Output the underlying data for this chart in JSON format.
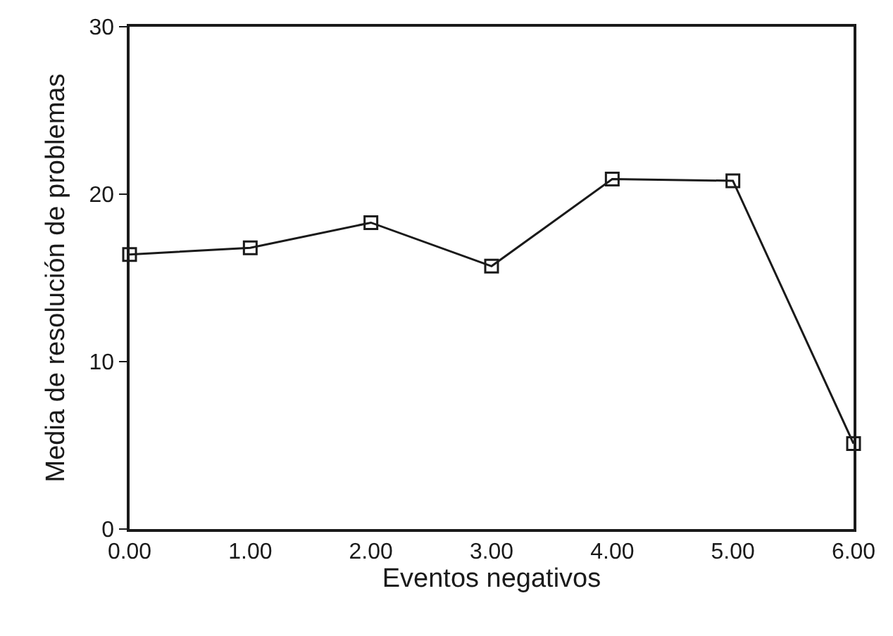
{
  "chart_data": {
    "type": "line",
    "xlabel": "Eventos negativos",
    "ylabel": "Media de resolución de problemas",
    "categories": [
      "0.00",
      "1.00",
      "2.00",
      "3.00",
      "4.00",
      "5.00",
      "6.00"
    ],
    "series": [
      {
        "color": "#1a1a1a",
        "values": [
          16.4,
          16.8,
          18.3,
          15.7,
          20.9,
          20.8,
          5.1
        ]
      }
    ],
    "ylim": [
      0,
      30
    ],
    "yticks": [
      0,
      10,
      20,
      30
    ],
    "marker": "square",
    "line_style": "solid"
  }
}
